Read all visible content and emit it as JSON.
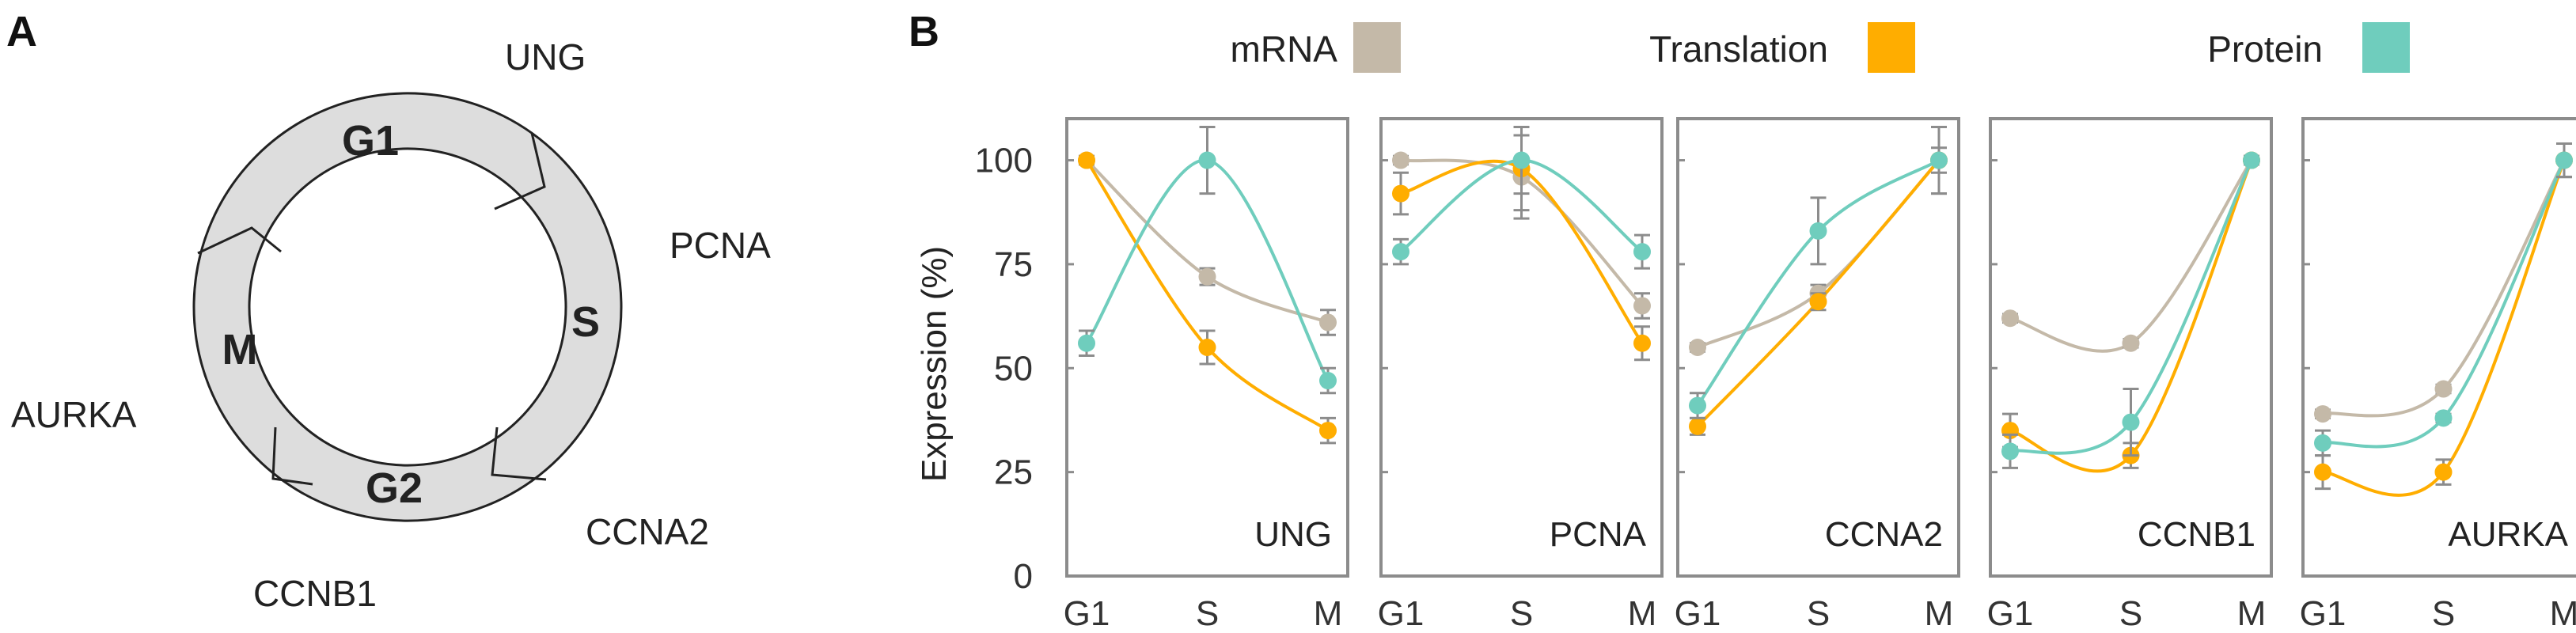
{
  "panel_a": {
    "letter": "A",
    "phases": [
      "G1",
      "S",
      "G2",
      "M"
    ],
    "genes": [
      "UNG",
      "PCNA",
      "CCNA2",
      "CCNB1",
      "AURKA"
    ]
  },
  "panel_b": {
    "letter": "B",
    "legend": [
      {
        "name": "mRNA",
        "color": "#c4b9a8"
      },
      {
        "name": "Translation",
        "color": "#ffad00"
      },
      {
        "name": "Protein",
        "color": "#6fcdbd"
      }
    ]
  },
  "chart_data": {
    "type": "line",
    "ylabel": "Expression (%)",
    "ylim": [
      0,
      110
    ],
    "yticks": [
      "0",
      "25",
      "50",
      "75",
      "100"
    ],
    "categories": [
      "G1",
      "S",
      "M"
    ],
    "grid": false,
    "legend_position": "top",
    "panels": [
      {
        "title": "UNG",
        "series": [
          {
            "name": "mRNA",
            "values": [
              100,
              72,
              61
            ],
            "errors": [
              1,
              2,
              3
            ]
          },
          {
            "name": "Translation",
            "values": [
              100,
              55,
              35
            ],
            "errors": [
              1,
              4,
              3
            ]
          },
          {
            "name": "Protein",
            "values": [
              56,
              100,
              47
            ],
            "errors": [
              3,
              8,
              3
            ]
          }
        ]
      },
      {
        "title": "PCNA",
        "series": [
          {
            "name": "mRNA",
            "values": [
              100,
              96,
              65
            ],
            "errors": [
              1,
              10,
              3
            ]
          },
          {
            "name": "Translation",
            "values": [
              92,
              98,
              56
            ],
            "errors": [
              5,
              10,
              4
            ]
          },
          {
            "name": "Protein",
            "values": [
              78,
              100,
              78
            ],
            "errors": [
              3,
              8,
              4
            ]
          }
        ]
      },
      {
        "title": "CCNA2",
        "series": [
          {
            "name": "mRNA",
            "values": [
              55,
              68,
              100
            ],
            "errors": [
              1,
              2,
              8
            ]
          },
          {
            "name": "Translation",
            "values": [
              36,
              66,
              100
            ],
            "errors": [
              2,
              2,
              8
            ]
          },
          {
            "name": "Protein",
            "values": [
              41,
              83,
              100
            ],
            "errors": [
              3,
              8,
              3
            ]
          }
        ]
      },
      {
        "title": "CCNB1",
        "series": [
          {
            "name": "mRNA",
            "values": [
              62,
              56,
              100
            ],
            "errors": [
              1,
              1,
              1
            ]
          },
          {
            "name": "Translation",
            "values": [
              35,
              29,
              100
            ],
            "errors": [
              4,
              3,
              1
            ]
          },
          {
            "name": "Protein",
            "values": [
              30,
              37,
              100
            ],
            "errors": [
              4,
              8,
              1
            ]
          }
        ]
      },
      {
        "title": "AURKA",
        "series": [
          {
            "name": "mRNA",
            "values": [
              39,
              45,
              100
            ],
            "errors": [
              1,
              1,
              4
            ]
          },
          {
            "name": "Translation",
            "values": [
              25,
              25,
              100
            ],
            "errors": [
              4,
              3,
              4
            ]
          },
          {
            "name": "Protein",
            "values": [
              32,
              38,
              100
            ],
            "errors": [
              3,
              1,
              4
            ]
          }
        ]
      }
    ]
  }
}
